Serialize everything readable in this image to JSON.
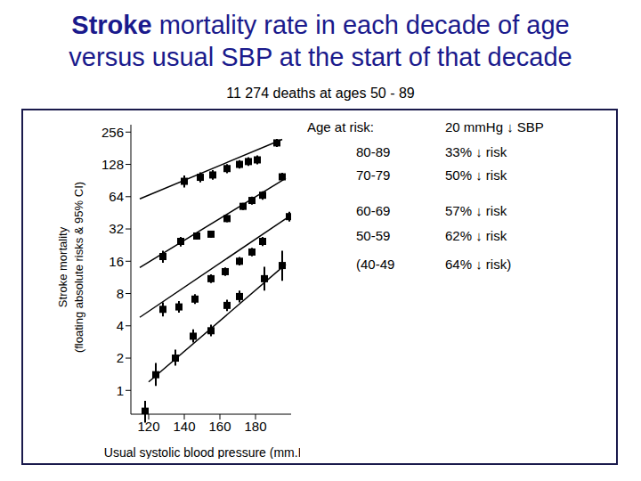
{
  "chart_data": {
    "type": "scatter",
    "title": [
      "Stroke mortality rate in each decade of age",
      "versus usual SBP at the start of that decade"
    ],
    "subtitle": "11 274 deaths at ages 50 - 89",
    "x_label": "Usual systolic blood pressure (mm.Hg)",
    "y_label": [
      "Stroke mortality",
      "(floating absolute risks & 95% CI)"
    ],
    "log": "y",
    "xlim": [
      110,
      200
    ],
    "xticks": [
      120,
      140,
      160,
      180
    ],
    "ylim": [
      0.6,
      300
    ],
    "yticks": [
      1,
      2,
      4,
      8,
      16,
      32,
      64,
      128,
      256
    ],
    "annotation_header": [
      "Age at risk:",
      "20 mmHg ↓ SBP"
    ],
    "series": [
      {
        "name": "80-89",
        "annotation": "33% ↓ risk",
        "color": "#000000",
        "marker": "square",
        "x": [
          140,
          149,
          156,
          164,
          171,
          176,
          181,
          192
        ],
        "values": [
          89,
          97,
          102,
          117,
          128,
          136,
          141,
          203
        ],
        "ci_low": [
          78,
          87,
          92,
          106,
          117,
          124,
          128,
          186
        ],
        "ci_high": [
          101,
          108,
          113,
          129,
          140,
          149,
          155,
          221
        ],
        "fit_x": [
          115,
          195
        ],
        "fit_values": [
          61,
          219
        ]
      },
      {
        "name": "70-79",
        "annotation": "50% ↓ risk",
        "color": "#000000",
        "marker": "square",
        "x": [
          128,
          138,
          147,
          155,
          164,
          173,
          178,
          184,
          195
        ],
        "values": [
          17.7,
          24.5,
          27.5,
          28.6,
          40,
          52,
          59,
          66,
          98
        ],
        "ci_low": [
          15.5,
          22,
          25.5,
          26.5,
          37,
          48,
          54,
          60,
          90
        ],
        "ci_high": [
          20,
          27,
          29.7,
          30.8,
          43,
          56,
          64,
          72,
          107
        ],
        "fit_x": [
          115,
          197
        ],
        "fit_values": [
          14,
          95
        ]
      },
      {
        "name": "60-69",
        "annotation": "57% ↓ risk",
        "color": "#000000",
        "marker": "square",
        "x": [
          128,
          137,
          146,
          155,
          163,
          171,
          178,
          184,
          199
        ],
        "values": [
          5.7,
          6,
          7.1,
          11,
          12.8,
          16,
          19.5,
          24.5,
          41.7
        ],
        "ci_low": [
          4.9,
          5.3,
          6.4,
          10,
          11.7,
          14.6,
          17.8,
          22.2,
          37.5
        ],
        "ci_high": [
          6.6,
          6.8,
          7.9,
          12.1,
          14,
          17.5,
          21.3,
          27,
          46.3
        ],
        "fit_x": [
          115,
          199
        ],
        "fit_values": [
          4.8,
          42
        ]
      },
      {
        "name": "50-59",
        "annotation": "62% ↓ risk",
        "color": "#000000",
        "marker": "square",
        "x": [
          124,
          135,
          145,
          155,
          164,
          171,
          185,
          195
        ],
        "values": [
          1.4,
          2,
          3.2,
          3.6,
          6.2,
          7.5,
          11,
          14.6
        ],
        "ci_low": [
          1.1,
          1.7,
          2.8,
          3.2,
          5.5,
          6.6,
          8.5,
          10.5
        ],
        "ci_high": [
          1.8,
          2.4,
          3.7,
          4.1,
          7,
          8.5,
          14.2,
          20
        ],
        "fit_x": [
          120,
          197
        ],
        "fit_values": [
          1.2,
          15
        ]
      },
      {
        "name": "(40-49",
        "annotation": "64% ↓ risk)",
        "color": "#000000",
        "marker": "square",
        "x": [
          118
        ],
        "values": [
          0.64
        ],
        "ci_low": [
          0.5
        ],
        "ci_high": [
          0.8
        ]
      }
    ]
  }
}
